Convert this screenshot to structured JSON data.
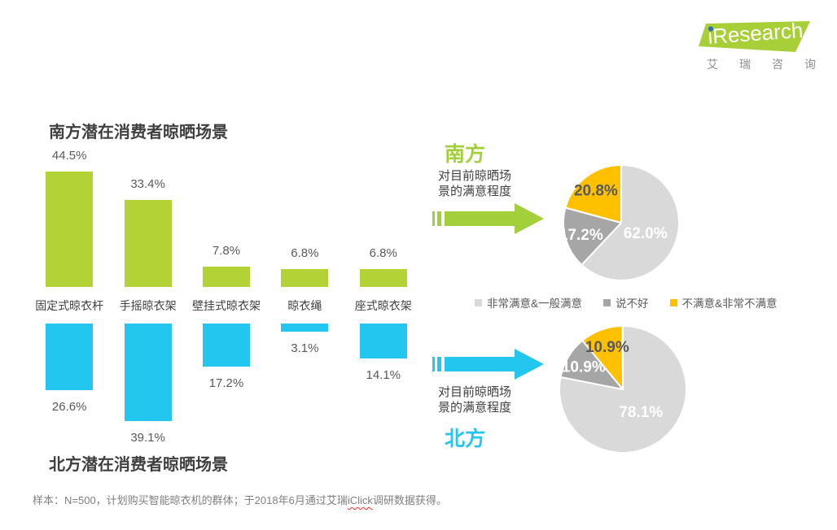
{
  "logo": {
    "brand": "iResearch",
    "brand_cn": "艾瑞咨询",
    "banner_color": "#a8ce38",
    "dot_color": "#2e6cb5"
  },
  "chart_data": [
    {
      "id": "south_bars",
      "type": "bar",
      "title": "南方潜在消费者晾晒场景",
      "categories": [
        "固定式晾衣杆",
        "手摇晾衣架",
        "壁挂式晾衣架",
        "晾衣绳",
        "座式晾衣架"
      ],
      "values": [
        44.5,
        33.4,
        7.8,
        6.8,
        6.8
      ],
      "unit": "%",
      "bar_color": "#b2d235",
      "direction": "up",
      "ylim": [
        0,
        50
      ],
      "grid": "off"
    },
    {
      "id": "north_bars",
      "type": "bar",
      "title": "北方潜在消费者晾晒场景",
      "categories": [
        "固定式晾衣杆",
        "手摇晾衣架",
        "壁挂式晾衣架",
        "晾衣绳",
        "座式晾衣架"
      ],
      "values": [
        26.6,
        39.1,
        17.2,
        3.1,
        14.1
      ],
      "unit": "%",
      "bar_color": "#23c6ef",
      "direction": "down",
      "ylim": [
        0,
        50
      ],
      "grid": "off"
    },
    {
      "id": "south_pie",
      "type": "pie",
      "region_label": "南方",
      "region_color": "#a2cf3a",
      "caption": "对目前晾晒场景的满意程度",
      "caption_lines": [
        "对目前晾晒场",
        "景的满意程度"
      ],
      "start_angle_deg": 0,
      "slices": [
        {
          "label": "非常满意&一般满意",
          "value": 62.0,
          "color": "#d9d9d9",
          "text_color": "#ffffff"
        },
        {
          "label": "说不好",
          "value": 17.2,
          "color": "#a6a6a6",
          "text_color": "#ffffff"
        },
        {
          "label": "不满意&非常不满意",
          "value": 20.8,
          "color": "#ffc000",
          "text_color": "#595959"
        }
      ]
    },
    {
      "id": "north_pie",
      "type": "pie",
      "region_label": "北方",
      "region_color": "#23c6ef",
      "caption": "对目前晾晒场景的满意程度",
      "caption_lines": [
        "对目前晾晒场",
        "景的满意程度"
      ],
      "start_angle_deg": 0,
      "slices": [
        {
          "label": "非常满意&一般满意",
          "value": 78.1,
          "color": "#d9d9d9",
          "text_color": "#ffffff"
        },
        {
          "label": "说不好",
          "value": 10.9,
          "color": "#a6a6a6",
          "text_color": "#ffffff"
        },
        {
          "label": "不满意&非常不满意",
          "value": 10.9,
          "color": "#ffc000",
          "text_color": "#595959"
        }
      ]
    }
  ],
  "legend": {
    "items": [
      {
        "label": "非常满意&一般满意",
        "color": "#d9d9d9"
      },
      {
        "label": "说不好",
        "color": "#a6a6a6"
      },
      {
        "label": "不满意&非常不满意",
        "color": "#ffc000"
      }
    ]
  },
  "footnote": {
    "prefix": "样本：N=500，计划购买智能晾衣机的群体；于2018年6月通过艾瑞",
    "spellcheck_word": "iClick",
    "suffix": "调研数据获得。",
    "spell_underline_color": "#ff2a2a"
  }
}
